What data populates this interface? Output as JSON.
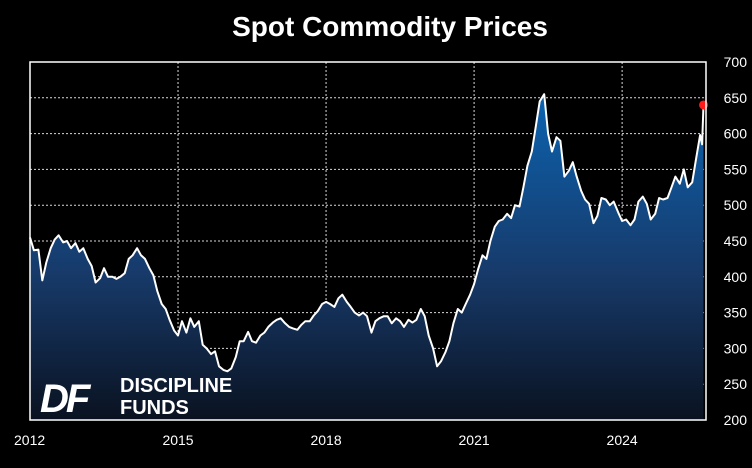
{
  "chart_data": {
    "type": "area",
    "title": "Spot Commodity Prices",
    "xlabel": "",
    "ylabel": "",
    "xlim": [
      2012.0,
      2025.7
    ],
    "ylim": [
      200,
      700
    ],
    "x_ticks": [
      "2012",
      "2015",
      "2018",
      "2021",
      "2024"
    ],
    "x_tick_values": [
      2012,
      2015,
      2018,
      2021,
      2024
    ],
    "y_ticks": [
      200,
      250,
      300,
      350,
      400,
      450,
      500,
      550,
      600,
      650,
      700
    ],
    "grid": true,
    "legend": "none",
    "colors": {
      "background": "#000000",
      "plot_background": "#000000",
      "line": "#ffffff",
      "fill_top": "#0b63b0",
      "fill_bottom": "#0a1220",
      "grid": "#ffffff",
      "last_point": "#ff1a1a",
      "text": "#ffffff"
    },
    "last_point": {
      "x": 2025.65,
      "y": 640
    },
    "series": [
      {
        "values": [
          [
            2012.0,
            455
          ],
          [
            2012.08,
            437
          ],
          [
            2012.17,
            438
          ],
          [
            2012.25,
            395
          ],
          [
            2012.33,
            420
          ],
          [
            2012.42,
            440
          ],
          [
            2012.5,
            452
          ],
          [
            2012.58,
            458
          ],
          [
            2012.67,
            448
          ],
          [
            2012.75,
            450
          ],
          [
            2012.83,
            440
          ],
          [
            2012.92,
            447
          ],
          [
            2013.0,
            435
          ],
          [
            2013.08,
            440
          ],
          [
            2013.17,
            425
          ],
          [
            2013.25,
            415
          ],
          [
            2013.33,
            392
          ],
          [
            2013.42,
            398
          ],
          [
            2013.5,
            412
          ],
          [
            2013.58,
            400
          ],
          [
            2013.67,
            400
          ],
          [
            2013.75,
            397
          ],
          [
            2013.83,
            400
          ],
          [
            2013.92,
            405
          ],
          [
            2014.0,
            425
          ],
          [
            2014.08,
            430
          ],
          [
            2014.17,
            440
          ],
          [
            2014.25,
            430
          ],
          [
            2014.33,
            425
          ],
          [
            2014.42,
            412
          ],
          [
            2014.5,
            402
          ],
          [
            2014.58,
            380
          ],
          [
            2014.67,
            362
          ],
          [
            2014.75,
            355
          ],
          [
            2014.83,
            340
          ],
          [
            2014.92,
            325
          ],
          [
            2015.0,
            318
          ],
          [
            2015.08,
            338
          ],
          [
            2015.17,
            322
          ],
          [
            2015.25,
            342
          ],
          [
            2015.33,
            330
          ],
          [
            2015.42,
            338
          ],
          [
            2015.5,
            305
          ],
          [
            2015.58,
            300
          ],
          [
            2015.67,
            292
          ],
          [
            2015.75,
            296
          ],
          [
            2015.83,
            275
          ],
          [
            2015.92,
            270
          ],
          [
            2016.0,
            268
          ],
          [
            2016.08,
            272
          ],
          [
            2016.17,
            288
          ],
          [
            2016.25,
            310
          ],
          [
            2016.33,
            310
          ],
          [
            2016.42,
            323
          ],
          [
            2016.5,
            310
          ],
          [
            2016.58,
            308
          ],
          [
            2016.67,
            318
          ],
          [
            2016.75,
            322
          ],
          [
            2016.83,
            330
          ],
          [
            2016.92,
            336
          ],
          [
            2017.0,
            340
          ],
          [
            2017.08,
            342
          ],
          [
            2017.17,
            335
          ],
          [
            2017.25,
            330
          ],
          [
            2017.33,
            328
          ],
          [
            2017.42,
            326
          ],
          [
            2017.5,
            333
          ],
          [
            2017.58,
            338
          ],
          [
            2017.67,
            338
          ],
          [
            2017.75,
            346
          ],
          [
            2017.83,
            352
          ],
          [
            2017.92,
            362
          ],
          [
            2018.0,
            365
          ],
          [
            2018.08,
            362
          ],
          [
            2018.17,
            358
          ],
          [
            2018.25,
            370
          ],
          [
            2018.33,
            375
          ],
          [
            2018.42,
            365
          ],
          [
            2018.5,
            358
          ],
          [
            2018.58,
            350
          ],
          [
            2018.67,
            346
          ],
          [
            2018.75,
            350
          ],
          [
            2018.83,
            345
          ],
          [
            2018.92,
            322
          ],
          [
            2019.0,
            338
          ],
          [
            2019.08,
            342
          ],
          [
            2019.17,
            345
          ],
          [
            2019.25,
            345
          ],
          [
            2019.33,
            335
          ],
          [
            2019.42,
            342
          ],
          [
            2019.5,
            338
          ],
          [
            2019.58,
            330
          ],
          [
            2019.67,
            340
          ],
          [
            2019.75,
            336
          ],
          [
            2019.83,
            340
          ],
          [
            2019.92,
            355
          ],
          [
            2020.0,
            345
          ],
          [
            2020.08,
            318
          ],
          [
            2020.17,
            300
          ],
          [
            2020.25,
            275
          ],
          [
            2020.33,
            282
          ],
          [
            2020.42,
            295
          ],
          [
            2020.5,
            310
          ],
          [
            2020.58,
            335
          ],
          [
            2020.67,
            355
          ],
          [
            2020.75,
            350
          ],
          [
            2020.83,
            362
          ],
          [
            2020.92,
            375
          ],
          [
            2021.0,
            390
          ],
          [
            2021.08,
            410
          ],
          [
            2021.17,
            430
          ],
          [
            2021.25,
            425
          ],
          [
            2021.33,
            450
          ],
          [
            2021.42,
            470
          ],
          [
            2021.5,
            478
          ],
          [
            2021.58,
            480
          ],
          [
            2021.67,
            488
          ],
          [
            2021.75,
            482
          ],
          [
            2021.83,
            500
          ],
          [
            2021.92,
            498
          ],
          [
            2022.0,
            525
          ],
          [
            2022.08,
            555
          ],
          [
            2022.17,
            575
          ],
          [
            2022.25,
            610
          ],
          [
            2022.33,
            645
          ],
          [
            2022.42,
            655
          ],
          [
            2022.5,
            600
          ],
          [
            2022.58,
            575
          ],
          [
            2022.67,
            595
          ],
          [
            2022.75,
            590
          ],
          [
            2022.83,
            540
          ],
          [
            2022.92,
            548
          ],
          [
            2023.0,
            560
          ],
          [
            2023.08,
            540
          ],
          [
            2023.17,
            520
          ],
          [
            2023.25,
            508
          ],
          [
            2023.33,
            502
          ],
          [
            2023.42,
            475
          ],
          [
            2023.5,
            485
          ],
          [
            2023.58,
            510
          ],
          [
            2023.67,
            508
          ],
          [
            2023.75,
            500
          ],
          [
            2023.83,
            505
          ],
          [
            2023.92,
            490
          ],
          [
            2024.0,
            478
          ],
          [
            2024.08,
            480
          ],
          [
            2024.17,
            472
          ],
          [
            2024.25,
            480
          ],
          [
            2024.33,
            505
          ],
          [
            2024.42,
            512
          ],
          [
            2024.5,
            502
          ],
          [
            2024.58,
            480
          ],
          [
            2024.67,
            488
          ],
          [
            2024.75,
            510
          ],
          [
            2024.83,
            508
          ],
          [
            2024.92,
            510
          ],
          [
            2025.0,
            525
          ],
          [
            2025.08,
            540
          ],
          [
            2025.17,
            530
          ],
          [
            2025.25,
            550
          ],
          [
            2025.33,
            525
          ],
          [
            2025.42,
            532
          ],
          [
            2025.5,
            565
          ],
          [
            2025.58,
            598
          ],
          [
            2025.62,
            585
          ],
          [
            2025.65,
            640
          ]
        ]
      }
    ]
  },
  "logo": {
    "mark_text": "DF",
    "line1": "DISCIPLINE",
    "line2": "FUNDS"
  }
}
